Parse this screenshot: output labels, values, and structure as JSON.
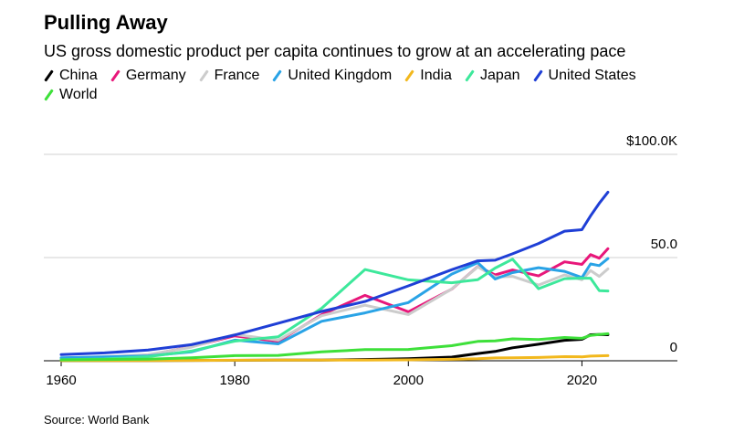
{
  "chart_data": {
    "type": "line",
    "title": "Pulling Away",
    "subtitle": "US gross domestic product per capita continues to grow at an accelerating pace",
    "source": "Source: World Bank",
    "x": [
      1960,
      1965,
      1970,
      1975,
      1980,
      1985,
      1990,
      1995,
      2000,
      2005,
      2008,
      2010,
      2012,
      2015,
      2018,
      2020,
      2021,
      2022,
      2023
    ],
    "xlim": [
      1958,
      2031
    ],
    "xticks": [
      1960,
      1980,
      2000,
      2020
    ],
    "ylim": [
      0,
      100
    ],
    "yticks": [
      0,
      {
        "value": 50,
        "label": "50.0"
      },
      {
        "value": 100,
        "label": "$100.0K"
      }
    ],
    "grid": true,
    "legend": "top-left",
    "series": [
      {
        "name": "China",
        "color": "#000000",
        "values": [
          0.09,
          0.1,
          0.11,
          0.18,
          0.2,
          0.29,
          0.32,
          0.61,
          0.96,
          1.75,
          3.5,
          4.5,
          6.3,
          8.0,
          9.9,
          10.4,
          12.6,
          12.7,
          12.6
        ]
      },
      {
        "name": "Germany",
        "color": "#e8177a",
        "values": [
          null,
          null,
          2.7,
          6.8,
          12.1,
          9.4,
          22.3,
          31.7,
          23.7,
          34.7,
          45.6,
          41.6,
          44.0,
          41.1,
          47.9,
          46.7,
          51.4,
          49.7,
          54.3
        ]
      },
      {
        "name": "France",
        "color": "#cccccc",
        "values": [
          1.3,
          2.0,
          2.9,
          6.6,
          12.7,
          10.0,
          21.8,
          26.9,
          22.4,
          34.8,
          45.5,
          40.6,
          40.9,
          36.7,
          41.6,
          39.2,
          43.7,
          40.9,
          44.5
        ]
      },
      {
        "name": "United Kingdom",
        "color": "#29a3e6",
        "values": [
          1.4,
          1.9,
          2.3,
          4.3,
          10.0,
          8.2,
          19.1,
          23.2,
          28.2,
          42.0,
          47.5,
          39.6,
          42.7,
          45.1,
          43.3,
          40.3,
          46.9,
          46.1,
          49.5
        ]
      },
      {
        "name": "India",
        "color": "#f2b81d",
        "values": [
          0.08,
          0.12,
          0.11,
          0.16,
          0.27,
          0.3,
          0.37,
          0.37,
          0.44,
          0.71,
          0.99,
          1.35,
          1.43,
          1.59,
          1.97,
          1.91,
          2.25,
          2.37,
          2.48
        ]
      },
      {
        "name": "Japan",
        "color": "#3de89b",
        "values": [
          0.5,
          0.9,
          2.0,
          4.7,
          9.5,
          11.6,
          25.4,
          44.2,
          39.2,
          37.8,
          39.3,
          44.9,
          49.2,
          34.9,
          39.8,
          40.0,
          40.0,
          34.0,
          33.8
        ]
      },
      {
        "name": "United States",
        "color": "#1f3fd6",
        "values": [
          3.0,
          3.8,
          5.2,
          7.8,
          12.5,
          18.2,
          23.9,
          28.7,
          36.3,
          44.1,
          48.4,
          48.7,
          51.8,
          56.8,
          62.8,
          63.5,
          70.2,
          76.3,
          81.7
        ]
      },
      {
        "name": "World",
        "color": "#3ee03a",
        "values": [
          0.45,
          0.6,
          0.8,
          1.4,
          2.5,
          2.6,
          4.3,
          5.4,
          5.5,
          7.3,
          9.4,
          9.6,
          10.6,
          10.3,
          11.3,
          10.9,
          12.3,
          12.7,
          13.1
        ]
      }
    ]
  }
}
